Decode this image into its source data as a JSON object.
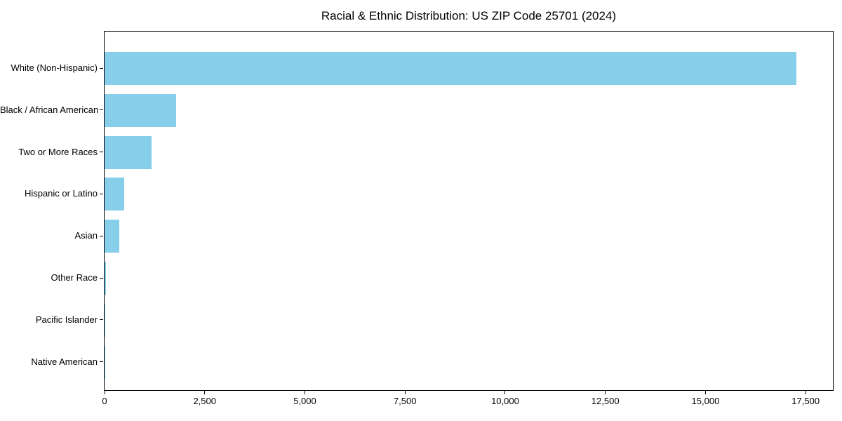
{
  "chart_data": {
    "type": "bar",
    "orientation": "horizontal",
    "title": "Racial & Ethnic Distribution: US ZIP Code 25701 (2024)",
    "categories": [
      "White (Non-Hispanic)",
      "Black / African American",
      "Two or More Races",
      "Hispanic or Latino",
      "Asian",
      "Other Race",
      "Pacific Islander",
      "Native American"
    ],
    "values": [
      17270,
      1780,
      1170,
      490,
      370,
      40,
      20,
      15
    ],
    "xlabel": "",
    "ylabel": "",
    "xlim": [
      0,
      18180
    ],
    "x_ticks": [
      0,
      2500,
      5000,
      7500,
      10000,
      12500,
      15000,
      17500
    ],
    "x_tick_labels": [
      "0",
      "2,500",
      "5,000",
      "7,500",
      "10,000",
      "12,500",
      "15,000",
      "17,500"
    ],
    "bar_color": "#87CEEB",
    "text_color": "#000000",
    "spine_color": "#000000",
    "grid": false,
    "legend": null
  }
}
